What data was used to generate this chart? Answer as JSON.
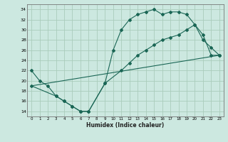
{
  "xlabel": "Humidex (Indice chaleur)",
  "bg_color": "#cce8e0",
  "grid_color": "#aaccbb",
  "line_color": "#1a6655",
  "xlim": [
    -0.5,
    23.5
  ],
  "ylim": [
    13,
    35
  ],
  "yticks": [
    14,
    16,
    18,
    20,
    22,
    24,
    26,
    28,
    30,
    32,
    34
  ],
  "xticks": [
    0,
    1,
    2,
    3,
    4,
    5,
    6,
    7,
    8,
    9,
    10,
    11,
    12,
    13,
    14,
    15,
    16,
    17,
    18,
    19,
    20,
    21,
    22,
    23
  ],
  "line1_x": [
    0,
    1,
    2,
    3,
    4,
    5,
    6,
    7,
    9,
    10,
    11,
    12,
    13,
    14,
    15,
    16,
    17,
    18,
    19,
    20,
    21,
    22,
    23
  ],
  "line1_y": [
    22,
    20,
    19,
    17,
    16,
    15,
    14,
    14,
    19.5,
    26,
    30,
    32,
    33,
    33.5,
    34,
    33,
    33.5,
    33.5,
    33,
    31,
    29,
    25,
    25
  ],
  "line2_x": [
    0,
    3,
    4,
    5,
    6,
    7,
    9,
    11,
    12,
    13,
    14,
    15,
    16,
    17,
    18,
    19,
    20,
    21,
    22,
    23
  ],
  "line2_y": [
    19,
    17,
    16,
    15,
    14,
    14,
    19.5,
    22,
    23.5,
    25,
    26,
    27,
    28,
    28.5,
    29,
    30,
    31,
    28,
    26.5,
    25
  ],
  "line3_x": [
    0,
    23
  ],
  "line3_y": [
    19,
    25
  ]
}
